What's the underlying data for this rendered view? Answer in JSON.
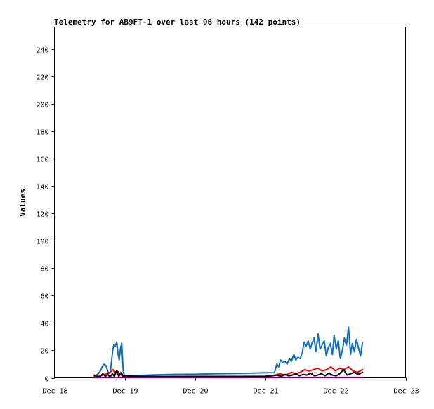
{
  "chart_data": {
    "type": "line",
    "title": "Telemetry for AB9FT-1 over last 96 hours (142 points)",
    "xlabel": "",
    "ylabel": "Values",
    "ylim": [
      0,
      256
    ],
    "xlim": [
      0,
      120
    ],
    "x_unit": "hours since Dec 18 00:00",
    "yticks": [
      0,
      20,
      40,
      60,
      80,
      100,
      120,
      140,
      160,
      180,
      200,
      220,
      240
    ],
    "xticks": [
      {
        "label": "Dec 18",
        "x": 0
      },
      {
        "label": "Dec 19",
        "x": 24
      },
      {
        "label": "Dec 20",
        "x": 48
      },
      {
        "label": "Dec 21",
        "x": 72
      },
      {
        "label": "Dec 22",
        "x": 96
      },
      {
        "label": "Dec 23",
        "x": 120
      }
    ],
    "grid": false,
    "legend": "none",
    "series": [
      {
        "color": "#1070c0",
        "x": [
          13.6,
          14.2,
          15.0,
          15.7,
          16.3,
          16.9,
          17.6,
          18.2,
          18.6,
          19.1,
          19.5,
          19.9,
          20.3,
          20.8,
          21.3,
          21.7,
          22.1,
          22.6,
          23.0,
          23.5,
          24.0,
          24.5,
          26.0,
          32.0,
          40.0,
          48.0,
          56.0,
          63.0,
          68.0,
          72.0,
          75.2,
          76.0,
          76.6,
          77.3,
          78.0,
          78.8,
          79.5,
          80.3,
          81.0,
          81.8,
          82.5,
          83.2,
          84.0,
          84.7,
          85.3,
          86.0,
          86.7,
          87.4,
          88.0,
          88.7,
          89.4,
          90.1,
          90.8,
          91.5,
          92.2,
          92.9,
          93.6,
          94.3,
          95.0,
          95.6,
          96.3,
          97.0,
          97.7,
          98.4,
          99.1,
          99.8,
          100.5,
          101.2,
          101.8,
          102.5,
          103.2,
          103.9,
          104.6,
          105.3
        ],
        "y": [
          1,
          2,
          3,
          5,
          8,
          10,
          9,
          5,
          3,
          4,
          12,
          20,
          24,
          23,
          26,
          18,
          13,
          22,
          25,
          5,
          1,
          0.5,
          1.5,
          2,
          2.5,
          2.6,
          3,
          3.2,
          3.5,
          3.7,
          3.8,
          10,
          8,
          13,
          11,
          12,
          10,
          14,
          12,
          17,
          13,
          15,
          14,
          18,
          26,
          23,
          27,
          21,
          25,
          29,
          19,
          32,
          21,
          24,
          27,
          16,
          22,
          25,
          17,
          31,
          21,
          27,
          14,
          20,
          29,
          24,
          37,
          17,
          25,
          19,
          28,
          22,
          16,
          26
        ]
      },
      {
        "color": "#ff0000",
        "x": [
          13.6,
          15.0,
          16.5,
          17.8,
          19.0,
          20.0,
          20.8,
          21.5,
          22.3,
          23.0,
          24.0,
          32.0,
          48.0,
          64.0,
          72.0,
          75.5,
          77.0,
          79.0,
          81.0,
          82.5,
          84.0,
          85.5,
          87.0,
          88.5,
          90.0,
          91.5,
          93.0,
          94.5,
          96.0,
          97.5,
          99.0,
          100.5,
          102.0,
          103.5,
          105.3
        ],
        "y": [
          1,
          1.5,
          2,
          3,
          4,
          6,
          4,
          5,
          3,
          2,
          1,
          1,
          1,
          1,
          1.2,
          2,
          3,
          2,
          4,
          3,
          4,
          6,
          5,
          6,
          7,
          5,
          6,
          8,
          5,
          7,
          6,
          8,
          5,
          4,
          6
        ]
      },
      {
        "color": "#000000",
        "x": [
          13.6,
          14.5,
          15.5,
          16.5,
          17.4,
          18.2,
          19.0,
          19.8,
          20.5,
          21.2,
          22.0,
          22.8,
          23.5,
          24.2,
          30.0,
          40.0,
          48.0,
          56.0,
          64.0,
          72.0,
          74.5,
          76.0,
          77.5,
          78.8,
          80.0,
          81.3,
          82.5,
          83.8,
          85.0,
          86.3,
          87.5,
          88.8,
          90.0,
          91.3,
          92.5,
          93.8,
          95.0,
          96.3,
          97.5,
          98.8,
          100.0,
          101.3,
          102.5,
          103.8,
          105.3
        ],
        "y": [
          2,
          1,
          0.5,
          3,
          1,
          2.5,
          0.5,
          3,
          1,
          5,
          1,
          4,
          1,
          1.5,
          1,
          1,
          1,
          1,
          1,
          1,
          1.5,
          2,
          1,
          2.5,
          1.5,
          2,
          3,
          1.5,
          2.5,
          2,
          3.5,
          1.5,
          2,
          3,
          1.5,
          3.5,
          2,
          1.5,
          3,
          6,
          2,
          3,
          4,
          2.5,
          4
        ]
      },
      {
        "color": "#800080",
        "x": [
          13.6,
          24.0,
          40.0,
          56.0,
          72.0,
          88.0,
          105.3
        ],
        "y": [
          0.3,
          0.3,
          0.3,
          0.3,
          0.3,
          0.3,
          0.3
        ]
      }
    ]
  }
}
